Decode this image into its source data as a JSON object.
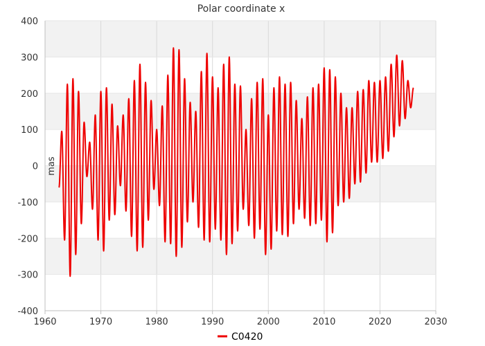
{
  "chart_data": {
    "type": "line",
    "title": "Polar coordinate x",
    "xlabel": "",
    "ylabel": "mas",
    "xlim": [
      1960,
      2030
    ],
    "ylim": [
      -400,
      400
    ],
    "x_ticks": [
      1960,
      1970,
      1980,
      1990,
      2000,
      2010,
      2020,
      2030
    ],
    "y_ticks": [
      -400,
      -300,
      -200,
      -100,
      0,
      100,
      200,
      300,
      400
    ],
    "grid": true,
    "legend_position": "bottom-center",
    "colors": {
      "series": "#ee0000",
      "band": "#f2f2f2",
      "grid": "#d9d9d9"
    },
    "series": [
      {
        "name": "C0420",
        "x": [
          1962.5,
          1963.0,
          1963.5,
          1964.0,
          1964.5,
          1965.0,
          1965.5,
          1966.0,
          1966.5,
          1967.0,
          1967.5,
          1968.0,
          1968.5,
          1969.0,
          1969.5,
          1970.0,
          1970.5,
          1971.0,
          1971.5,
          1972.0,
          1972.5,
          1973.0,
          1973.5,
          1974.0,
          1974.5,
          1975.0,
          1975.5,
          1976.0,
          1976.5,
          1977.0,
          1977.5,
          1978.0,
          1978.5,
          1979.0,
          1979.5,
          1980.0,
          1980.5,
          1981.0,
          1981.5,
          1982.0,
          1982.5,
          1983.0,
          1983.5,
          1984.0,
          1984.5,
          1985.0,
          1985.5,
          1986.0,
          1986.5,
          1987.0,
          1987.5,
          1988.0,
          1988.5,
          1989.0,
          1989.5,
          1990.0,
          1990.5,
          1991.0,
          1991.5,
          1992.0,
          1992.5,
          1993.0,
          1993.5,
          1994.0,
          1994.5,
          1995.0,
          1995.5,
          1996.0,
          1996.5,
          1997.0,
          1997.5,
          1998.0,
          1998.5,
          1999.0,
          1999.5,
          2000.0,
          2000.5,
          2001.0,
          2001.5,
          2002.0,
          2002.5,
          2003.0,
          2003.5,
          2004.0,
          2004.5,
          2005.0,
          2005.5,
          2006.0,
          2006.5,
          2007.0,
          2007.5,
          2008.0,
          2008.5,
          2009.0,
          2009.5,
          2010.0,
          2010.5,
          2011.0,
          2011.5,
          2012.0,
          2012.5,
          2013.0,
          2013.5,
          2014.0,
          2014.5,
          2015.0,
          2015.5,
          2016.0,
          2016.5,
          2017.0,
          2017.5,
          2018.0,
          2018.5,
          2019.0,
          2019.5,
          2020.0,
          2020.5,
          2021.0,
          2021.5,
          2022.0,
          2022.5,
          2023.0,
          2023.5,
          2024.0,
          2024.5,
          2025.0,
          2025.5,
          2026.0
        ],
        "values": [
          -60,
          95,
          -205,
          225,
          -305,
          240,
          -245,
          205,
          -160,
          120,
          -30,
          65,
          -120,
          140,
          -205,
          205,
          -235,
          215,
          -150,
          170,
          -135,
          110,
          -55,
          140,
          -125,
          185,
          -195,
          235,
          -235,
          280,
          -225,
          230,
          -150,
          180,
          -65,
          100,
          -110,
          165,
          -210,
          250,
          -215,
          325,
          -250,
          320,
          -225,
          240,
          -155,
          175,
          -100,
          150,
          -170,
          260,
          -205,
          310,
          -210,
          245,
          -175,
          215,
          -205,
          280,
          -245,
          300,
          -215,
          225,
          -180,
          220,
          -120,
          100,
          -165,
          185,
          -200,
          230,
          -175,
          240,
          -245,
          140,
          -230,
          215,
          -180,
          245,
          -190,
          225,
          -195,
          230,
          -160,
          180,
          -120,
          130,
          -145,
          190,
          -165,
          215,
          -160,
          225,
          -150,
          270,
          -210,
          265,
          -185,
          245,
          -110,
          200,
          -100,
          160,
          -90,
          160,
          -50,
          205,
          -45,
          210,
          -20,
          235,
          10,
          230,
          10,
          235,
          20,
          245,
          40,
          280,
          80,
          305,
          110,
          290,
          130,
          235,
          160,
          215
        ]
      }
    ]
  }
}
